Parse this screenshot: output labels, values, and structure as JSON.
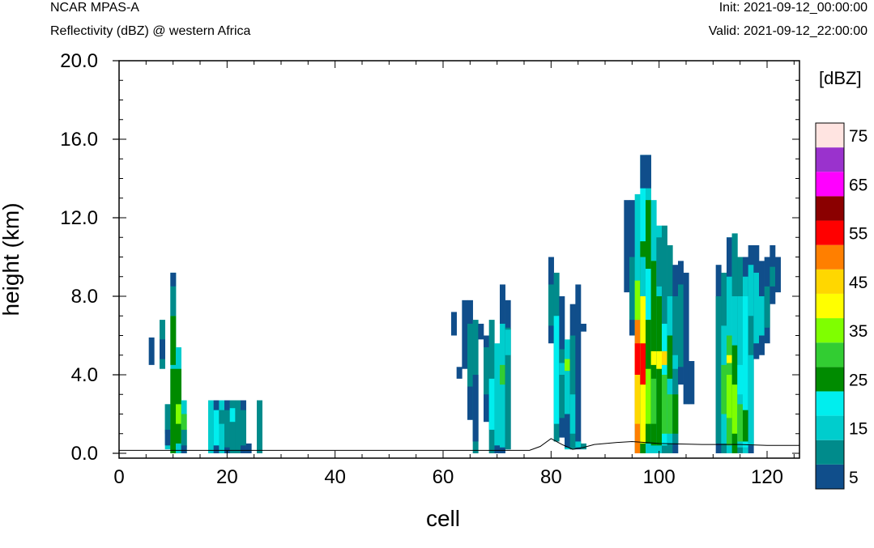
{
  "header": {
    "model": "NCAR MPAS-A",
    "subtitle": "Reflectivity (dBZ) @ western Africa",
    "init": "Init: 2021-09-12_00:00:00",
    "valid": "Valid: 2021-09-12_22:00:00"
  },
  "chart_data": {
    "type": "heatmap",
    "title": "Reflectivity (dBZ) @ western Africa",
    "xlabel": "cell",
    "ylabel": "height (km)",
    "xlim": [
      0,
      126
    ],
    "ylim": [
      0,
      20
    ],
    "x_ticks": [
      "0",
      "20",
      "40",
      "60",
      "80",
      "100",
      "120"
    ],
    "x_tick_values": [
      0,
      20,
      40,
      60,
      80,
      100,
      120
    ],
    "y_ticks": [
      "0.0",
      "4.0",
      "8.0",
      "12.0",
      "16.0",
      "20.0"
    ],
    "y_tick_values": [
      0,
      4,
      8,
      12,
      16,
      20
    ],
    "colorbar": {
      "unit": "[dBZ]",
      "levels": [
        5,
        10,
        15,
        20,
        25,
        30,
        35,
        40,
        45,
        50,
        55,
        60,
        65,
        70,
        75
      ],
      "tick_labels": [
        "5",
        "15",
        "25",
        "35",
        "45",
        "55",
        "65",
        "75"
      ],
      "colors": [
        "#104e8b",
        "#008b8b",
        "#00cdcd",
        "#00eeee",
        "#008b00",
        "#32cd32",
        "#7fff00",
        "#ffff00",
        "#ffd700",
        "#ff7f00",
        "#ff0000",
        "#8b0000",
        "#ff00ff",
        "#9a32cd",
        "#ffe4e1"
      ]
    },
    "columns": [
      {
        "x": 6,
        "segs": [
          [
            4.5,
            5.9,
            5
          ]
        ]
      },
      {
        "x": 8,
        "segs": [
          [
            4.3,
            6.8,
            10
          ],
          [
            4.8,
            5.8,
            5
          ]
        ]
      },
      {
        "x": 9,
        "segs": [
          [
            0.2,
            2.5,
            15
          ],
          [
            1.0,
            2.5,
            10
          ],
          [
            0.4,
            1.2,
            5
          ]
        ]
      },
      {
        "x": 10,
        "segs": [
          [
            0.0,
            9.2,
            15
          ],
          [
            0.0,
            4.3,
            25
          ],
          [
            4.5,
            7.0,
            25
          ],
          [
            7.0,
            8.5,
            10
          ],
          [
            8.5,
            9.2,
            5
          ]
        ]
      },
      {
        "x": 11,
        "segs": [
          [
            0.0,
            5.4,
            15
          ],
          [
            0.5,
            4.3,
            25
          ],
          [
            1.5,
            2.5,
            35
          ]
        ]
      },
      {
        "x": 12,
        "segs": [
          [
            0.0,
            2.7,
            15
          ],
          [
            0.0,
            2.0,
            30
          ],
          [
            0.3,
            1.2,
            10
          ],
          [
            0.0,
            0.4,
            5
          ]
        ]
      },
      {
        "x": 17,
        "segs": [
          [
            0.0,
            2.7,
            15
          ]
        ]
      },
      {
        "x": 18,
        "segs": [
          [
            0.0,
            2.7,
            5
          ],
          [
            0.4,
            2.2,
            20
          ]
        ]
      },
      {
        "x": 19,
        "segs": [
          [
            0.0,
            2.7,
            15
          ],
          [
            1.5,
            2.2,
            10
          ]
        ]
      },
      {
        "x": 20,
        "segs": [
          [
            0.0,
            2.7,
            5
          ],
          [
            0.3,
            2.2,
            10
          ]
        ]
      },
      {
        "x": 21,
        "segs": [
          [
            0.0,
            2.7,
            10
          ],
          [
            1.6,
            2.3,
            20
          ]
        ]
      },
      {
        "x": 22,
        "segs": [
          [
            0.0,
            2.7,
            10
          ]
        ]
      },
      {
        "x": 23,
        "segs": [
          [
            0.0,
            2.7,
            5
          ],
          [
            0.4,
            2.2,
            10
          ]
        ]
      },
      {
        "x": 24,
        "segs": [
          [
            0.0,
            0.5,
            5
          ]
        ]
      },
      {
        "x": 26,
        "segs": [
          [
            0.0,
            2.7,
            10
          ]
        ]
      },
      {
        "x": 62,
        "segs": [
          [
            6.0,
            7.2,
            5
          ]
        ]
      },
      {
        "x": 63,
        "segs": [
          [
            3.8,
            4.4,
            5
          ]
        ]
      },
      {
        "x": 64,
        "segs": [
          [
            4.3,
            7.8,
            5
          ]
        ]
      },
      {
        "x": 65,
        "segs": [
          [
            1.7,
            7.8,
            5
          ],
          [
            3.4,
            6.6,
            10
          ]
        ]
      },
      {
        "x": 66,
        "segs": [
          [
            0.0,
            6.8,
            10
          ],
          [
            0.6,
            4.0,
            5
          ]
        ]
      },
      {
        "x": 67,
        "segs": [
          [
            5.8,
            6.6,
            5
          ]
        ]
      },
      {
        "x": 68,
        "segs": [
          [
            1.6,
            6.0,
            5
          ],
          [
            3.0,
            5.4,
            10
          ]
        ]
      },
      {
        "x": 69,
        "segs": [
          [
            0.0,
            6.8,
            10
          ],
          [
            1.2,
            3.8,
            20
          ]
        ]
      },
      {
        "x": 70,
        "segs": [
          [
            0.0,
            5.6,
            15
          ],
          [
            0.0,
            0.4,
            5
          ]
        ]
      },
      {
        "x": 71,
        "segs": [
          [
            0.0,
            8.6,
            5
          ],
          [
            0.3,
            6.6,
            15
          ],
          [
            3.5,
            4.5,
            30
          ]
        ]
      },
      {
        "x": 72,
        "segs": [
          [
            0.2,
            7.8,
            5
          ],
          [
            0.2,
            6.4,
            10
          ],
          [
            5.0,
            6.3,
            15
          ]
        ]
      },
      {
        "x": 80,
        "segs": [
          [
            5.6,
            10.0,
            5
          ],
          [
            6.5,
            8.6,
            10
          ]
        ]
      },
      {
        "x": 81,
        "segs": [
          [
            0.6,
            9.2,
            10
          ],
          [
            1.5,
            7.0,
            20
          ]
        ]
      },
      {
        "x": 82,
        "segs": [
          [
            0.8,
            8.0,
            5
          ],
          [
            1.8,
            5.3,
            10
          ],
          [
            4.0,
            4.6,
            15
          ]
        ]
      },
      {
        "x": 83,
        "segs": [
          [
            0.2,
            5.8,
            15
          ],
          [
            4.2,
            4.8,
            35
          ],
          [
            0.3,
            2.0,
            5
          ]
        ]
      },
      {
        "x": 84,
        "segs": [
          [
            0.2,
            7.6,
            5
          ],
          [
            0.2,
            6.0,
            10
          ],
          [
            1.0,
            3.0,
            15
          ]
        ]
      },
      {
        "x": 85,
        "segs": [
          [
            0.2,
            8.6,
            5
          ],
          [
            0.3,
            0.6,
            15
          ]
        ]
      },
      {
        "x": 86,
        "segs": [
          [
            6.2,
            6.6,
            5
          ],
          [
            0.2,
            0.5,
            10
          ]
        ]
      },
      {
        "x": 94,
        "segs": [
          [
            8.2,
            12.9,
            5
          ]
        ]
      },
      {
        "x": 95,
        "segs": [
          [
            6.0,
            12.9,
            5
          ],
          [
            6.8,
            10.0,
            10
          ]
        ]
      },
      {
        "x": 96,
        "segs": [
          [
            0.0,
            13.2,
            15
          ],
          [
            0.0,
            6.8,
            50
          ],
          [
            1.5,
            5.5,
            45
          ],
          [
            4.0,
            5.6,
            55
          ],
          [
            6.8,
            8.8,
            35
          ]
        ]
      },
      {
        "x": 97,
        "segs": [
          [
            0.0,
            15.2,
            20
          ],
          [
            0.0,
            10.8,
            25
          ],
          [
            0.5,
            8.0,
            40
          ],
          [
            3.5,
            5.6,
            55
          ],
          [
            8.0,
            10.0,
            15
          ],
          [
            13.5,
            15.2,
            5
          ]
        ]
      },
      {
        "x": 98,
        "segs": [
          [
            0.0,
            15.2,
            15
          ],
          [
            0.5,
            12.9,
            25
          ],
          [
            1.5,
            4.3,
            35
          ],
          [
            6.8,
            9.4,
            20
          ],
          [
            13.5,
            15.2,
            5
          ]
        ]
      },
      {
        "x": 99,
        "segs": [
          [
            0.0,
            12.9,
            15
          ],
          [
            0.4,
            9.8,
            25
          ],
          [
            4.5,
            5.2,
            40
          ],
          [
            1.5,
            3.8,
            30
          ]
        ]
      },
      {
        "x": 100,
        "segs": [
          [
            0.0,
            11.6,
            15
          ],
          [
            0.4,
            8.0,
            25
          ],
          [
            4.3,
            5.2,
            40
          ],
          [
            8.5,
            11.0,
            10
          ]
        ]
      },
      {
        "x": 101,
        "segs": [
          [
            0.0,
            11.6,
            10
          ],
          [
            0.4,
            6.6,
            20
          ],
          [
            4.5,
            5.2,
            45
          ],
          [
            1.0,
            4.0,
            30
          ]
        ]
      },
      {
        "x": 102,
        "segs": [
          [
            0.0,
            10.6,
            10
          ],
          [
            0.5,
            8.0,
            15
          ],
          [
            3.8,
            6.0,
            25
          ],
          [
            1.0,
            3.0,
            30
          ]
        ]
      },
      {
        "x": 103,
        "segs": [
          [
            0.0,
            9.6,
            5
          ],
          [
            0.5,
            8.0,
            10
          ],
          [
            4.3,
            5.0,
            15
          ],
          [
            1.0,
            3.0,
            25
          ]
        ]
      },
      {
        "x": 104,
        "segs": [
          [
            3.5,
            9.8,
            5
          ],
          [
            4.4,
            8.6,
            10
          ]
        ]
      },
      {
        "x": 105,
        "segs": [
          [
            2.5,
            9.2,
            5
          ]
        ]
      },
      {
        "x": 106,
        "segs": [
          [
            2.5,
            4.7,
            5
          ]
        ]
      },
      {
        "x": 111,
        "segs": [
          [
            0.0,
            9.6,
            5
          ],
          [
            0.5,
            8.0,
            10
          ]
        ]
      },
      {
        "x": 112,
        "segs": [
          [
            0.0,
            9.2,
            10
          ],
          [
            0.5,
            6.5,
            15
          ],
          [
            2.0,
            4.5,
            30
          ]
        ]
      },
      {
        "x": 113,
        "segs": [
          [
            0.0,
            11.0,
            15
          ],
          [
            0.4,
            6.0,
            30
          ],
          [
            1.8,
            4.0,
            35
          ],
          [
            4.6,
            5.0,
            40
          ],
          [
            9.0,
            11.0,
            5
          ]
        ]
      },
      {
        "x": 114,
        "segs": [
          [
            0.0,
            11.2,
            15
          ],
          [
            0.0,
            5.5,
            25
          ],
          [
            1.0,
            3.5,
            35
          ],
          [
            8.0,
            11.2,
            10
          ]
        ]
      },
      {
        "x": 115,
        "segs": [
          [
            0.0,
            10.0,
            10
          ],
          [
            0.3,
            8.0,
            15
          ],
          [
            0.6,
            2.5,
            30
          ],
          [
            3.0,
            4.5,
            20
          ]
        ]
      },
      {
        "x": 116,
        "segs": [
          [
            0.0,
            10.0,
            15
          ],
          [
            0.3,
            8.0,
            20
          ],
          [
            0.6,
            2.2,
            25
          ],
          [
            9.0,
            10.0,
            5
          ]
        ]
      },
      {
        "x": 117,
        "segs": [
          [
            0.0,
            10.6,
            5
          ],
          [
            0.4,
            9.6,
            15
          ],
          [
            5.0,
            7.0,
            10
          ]
        ]
      },
      {
        "x": 118,
        "segs": [
          [
            4.8,
            10.6,
            5
          ],
          [
            5.6,
            9.2,
            15
          ]
        ]
      },
      {
        "x": 119,
        "segs": [
          [
            5.0,
            9.8,
            5
          ],
          [
            6.0,
            8.0,
            15
          ]
        ]
      },
      {
        "x": 120,
        "segs": [
          [
            5.6,
            10.0,
            5
          ],
          [
            6.4,
            8.5,
            10
          ]
        ]
      },
      {
        "x": 121,
        "segs": [
          [
            7.6,
            10.6,
            5
          ],
          [
            8.5,
            9.5,
            10
          ]
        ]
      },
      {
        "x": 122,
        "segs": [
          [
            8.2,
            10.0,
            5
          ]
        ]
      }
    ],
    "terrain": [
      [
        0,
        0.15
      ],
      [
        76,
        0.15
      ],
      [
        78,
        0.35
      ],
      [
        80,
        0.75
      ],
      [
        82,
        0.45
      ],
      [
        84,
        0.2
      ],
      [
        86,
        0.3
      ],
      [
        88,
        0.45
      ],
      [
        92,
        0.55
      ],
      [
        95,
        0.6
      ],
      [
        100,
        0.5
      ],
      [
        108,
        0.45
      ],
      [
        115,
        0.45
      ],
      [
        120,
        0.4
      ],
      [
        126,
        0.4
      ]
    ]
  }
}
